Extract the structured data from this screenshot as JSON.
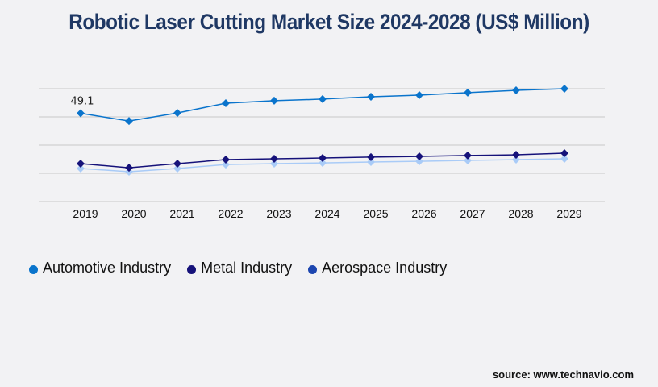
{
  "chart_data": {
    "type": "line",
    "title": "Robotic Laser Cutting Market Size 2024-2028 (US$ Million)",
    "xlabel": "",
    "ylabel": "",
    "categories": [
      "2019",
      "2020",
      "2021",
      "2022",
      "2023",
      "2024",
      "2025",
      "2026",
      "2027",
      "2028",
      "2029"
    ],
    "ylim": [
      0,
      62.8
    ],
    "grid": true,
    "legend_position": "bottom-left",
    "series": [
      {
        "name": "Automotive Industry",
        "line_color": "#0a74cc",
        "legend_color": "#0a74cc",
        "values": [
          49.1,
          44.8,
          49.3,
          54.7,
          56.1,
          57.0,
          58.3,
          59.2,
          60.6,
          61.9,
          62.8
        ]
      },
      {
        "name": "Metal Industry",
        "line_color": "#16127a",
        "legend_color": "#16127a",
        "values": [
          21.1,
          18.8,
          21.1,
          23.3,
          23.8,
          24.2,
          24.7,
          25.1,
          25.6,
          26.0,
          26.9
        ]
      },
      {
        "name": "Aerospace Industry",
        "line_color": "#a9cbf7",
        "legend_color": "#1d46b0",
        "values": [
          18.4,
          16.6,
          18.4,
          20.6,
          21.1,
          21.5,
          22.0,
          22.4,
          22.9,
          23.3,
          23.8
        ]
      }
    ],
    "annotations": [
      {
        "series": 0,
        "category": "2019",
        "text": "49.1"
      }
    ]
  },
  "source": "source: www.technavio.com"
}
